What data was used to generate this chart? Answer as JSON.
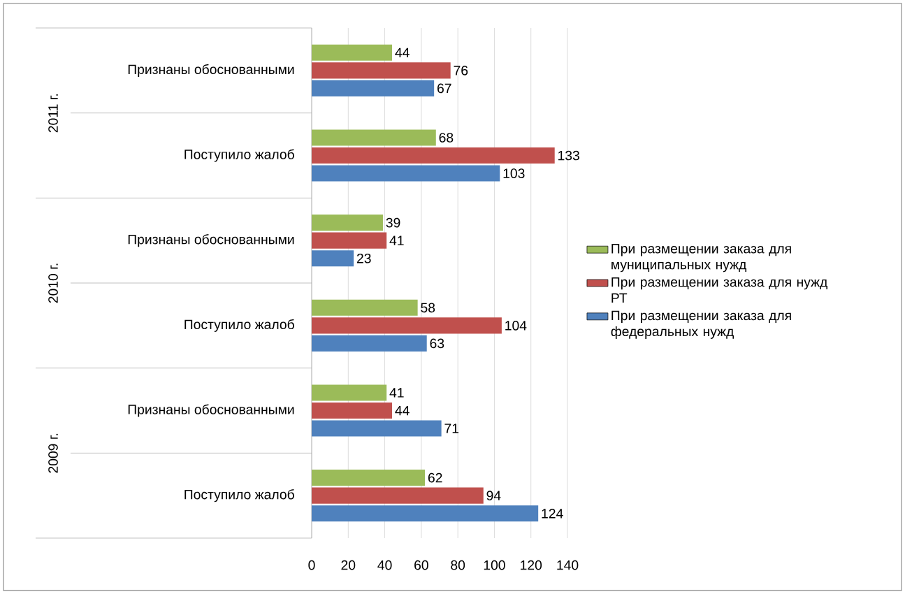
{
  "chart_data": {
    "type": "bar",
    "orientation": "horizontal",
    "categories": [
      "Признаны обоснованными",
      "Поступило жалоб",
      "Признаны обоснованными",
      "Поступило жалоб",
      "Признаны обоснованными",
      "Поступило жалоб"
    ],
    "series": [
      {
        "name": "При размещении заказа для муниципальных нужд",
        "color": "#9bbb59",
        "values": [
          44,
          68,
          39,
          58,
          41,
          62
        ]
      },
      {
        "name": "При размещении заказа для нужд РТ",
        "color": "#c0504d",
        "values": [
          76,
          133,
          41,
          104,
          44,
          94
        ]
      },
      {
        "name": "При размещении заказа для федеральных нужд",
        "color": "#4f81bd",
        "values": [
          67,
          103,
          23,
          63,
          71,
          124
        ]
      }
    ],
    "annotations": [
      "2011 г.",
      "2010 г.",
      "2009 г."
    ],
    "xlim": [
      0,
      140
    ],
    "xticks": [
      0,
      20,
      40,
      60,
      80,
      100,
      120,
      140
    ],
    "grid": "x",
    "legend": "right",
    "data_labels": true
  }
}
